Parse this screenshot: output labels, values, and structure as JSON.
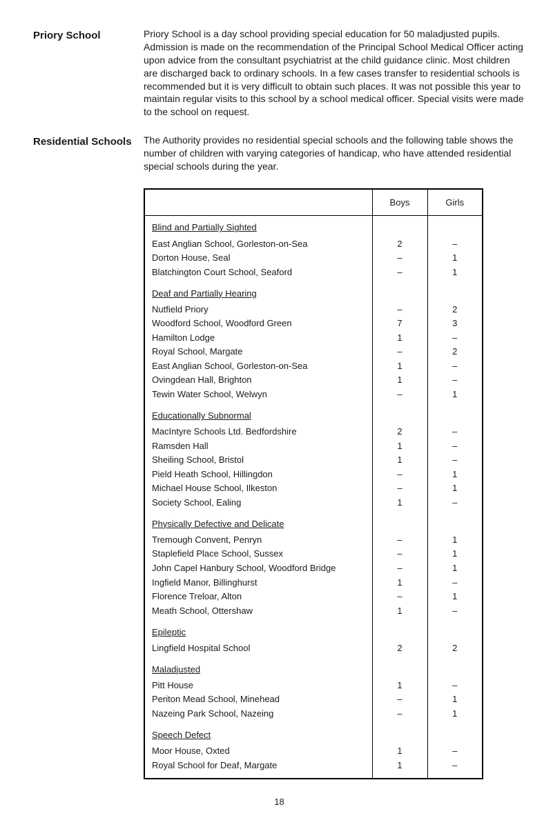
{
  "sections": [
    {
      "heading": "Priory School",
      "body": "Priory School is a day school providing special education for 50 maladjusted pupils. Admission is made on the recommendation of the Principal School Medical Officer acting upon advice from the consultant psychiatrist at the child guidance clinic. Most children are discharged back to ordinary schools. In a few cases transfer to residential schools is recommended but it is very difficult to obtain such places. It was not possible this year to maintain regular visits to this school by a school medical officer. Special visits were made to the school on request."
    },
    {
      "heading": "Residential Schools",
      "body": "The Authority provides no residential special schools and the following table shows the number of children with varying categories of handicap, who have attended residential special schools during the year."
    }
  ],
  "table": {
    "headers": {
      "col1": "",
      "col2": "Boys",
      "col3": "Girls"
    },
    "groups": [
      {
        "category": "Blind and Partially Sighted",
        "rows": [
          {
            "name": "East Anglian School, Gorleston-on-Sea",
            "boys": "2",
            "girls": "–"
          },
          {
            "name": "Dorton House, Seal",
            "boys": "–",
            "girls": "1"
          },
          {
            "name": "Blatchington Court School, Seaford",
            "boys": "–",
            "girls": "1"
          }
        ]
      },
      {
        "category": "Deaf and Partially Hearing",
        "rows": [
          {
            "name": "Nutfield Priory",
            "boys": "–",
            "girls": "2"
          },
          {
            "name": "Woodford School, Woodford Green",
            "boys": "7",
            "girls": "3"
          },
          {
            "name": "Hamilton Lodge",
            "boys": "1",
            "girls": "–"
          },
          {
            "name": "Royal School, Margate",
            "boys": "–",
            "girls": "2"
          },
          {
            "name": "East Anglian School, Gorleston-on-Sea",
            "boys": "1",
            "girls": "–"
          },
          {
            "name": "Ovingdean Hall, Brighton",
            "boys": "1",
            "girls": "–"
          },
          {
            "name": "Tewin Water School, Welwyn",
            "boys": "–",
            "girls": "1"
          }
        ]
      },
      {
        "category": "Educationally Subnormal",
        "rows": [
          {
            "name": "MacIntyre Schools Ltd. Bedfordshire",
            "boys": "2",
            "girls": "–"
          },
          {
            "name": "Ramsden Hall",
            "boys": "1",
            "girls": "–"
          },
          {
            "name": "Sheiling School, Bristol",
            "boys": "1",
            "girls": "–"
          },
          {
            "name": "Pield Heath School, Hillingdon",
            "boys": "–",
            "girls": "1"
          },
          {
            "name": "Michael House School, Ilkeston",
            "boys": "–",
            "girls": "1"
          },
          {
            "name": "Society School, Ealing",
            "boys": "1",
            "girls": "–"
          }
        ]
      },
      {
        "category": "Physically Defective and Delicate",
        "rows": [
          {
            "name": "Tremough Convent, Penryn",
            "boys": "–",
            "girls": "1"
          },
          {
            "name": "Staplefield Place School, Sussex",
            "boys": "–",
            "girls": "1"
          },
          {
            "name": "John Capel Hanbury School, Woodford Bridge",
            "boys": "–",
            "girls": "1"
          },
          {
            "name": "Ingfield Manor, Billinghurst",
            "boys": "1",
            "girls": "–"
          },
          {
            "name": "Florence Treloar, Alton",
            "boys": "–",
            "girls": "1"
          },
          {
            "name": "Meath School, Ottershaw",
            "boys": "1",
            "girls": "–"
          }
        ]
      },
      {
        "category": "Epileptic",
        "rows": [
          {
            "name": "Lingfield Hospital School",
            "boys": "2",
            "girls": "2"
          }
        ]
      },
      {
        "category": "Maladjusted",
        "rows": [
          {
            "name": "Pitt House",
            "boys": "1",
            "girls": "–"
          },
          {
            "name": "Periton Mead School, Minehead",
            "boys": "–",
            "girls": "1"
          },
          {
            "name": "Nazeing Park School, Nazeing",
            "boys": "–",
            "girls": "1"
          }
        ]
      },
      {
        "category": "Speech Defect",
        "rows": [
          {
            "name": "Moor House, Oxted",
            "boys": "1",
            "girls": "–"
          },
          {
            "name": "Royal School for Deaf, Margate",
            "boys": "1",
            "girls": "–"
          }
        ]
      }
    ]
  },
  "page_number": "18"
}
